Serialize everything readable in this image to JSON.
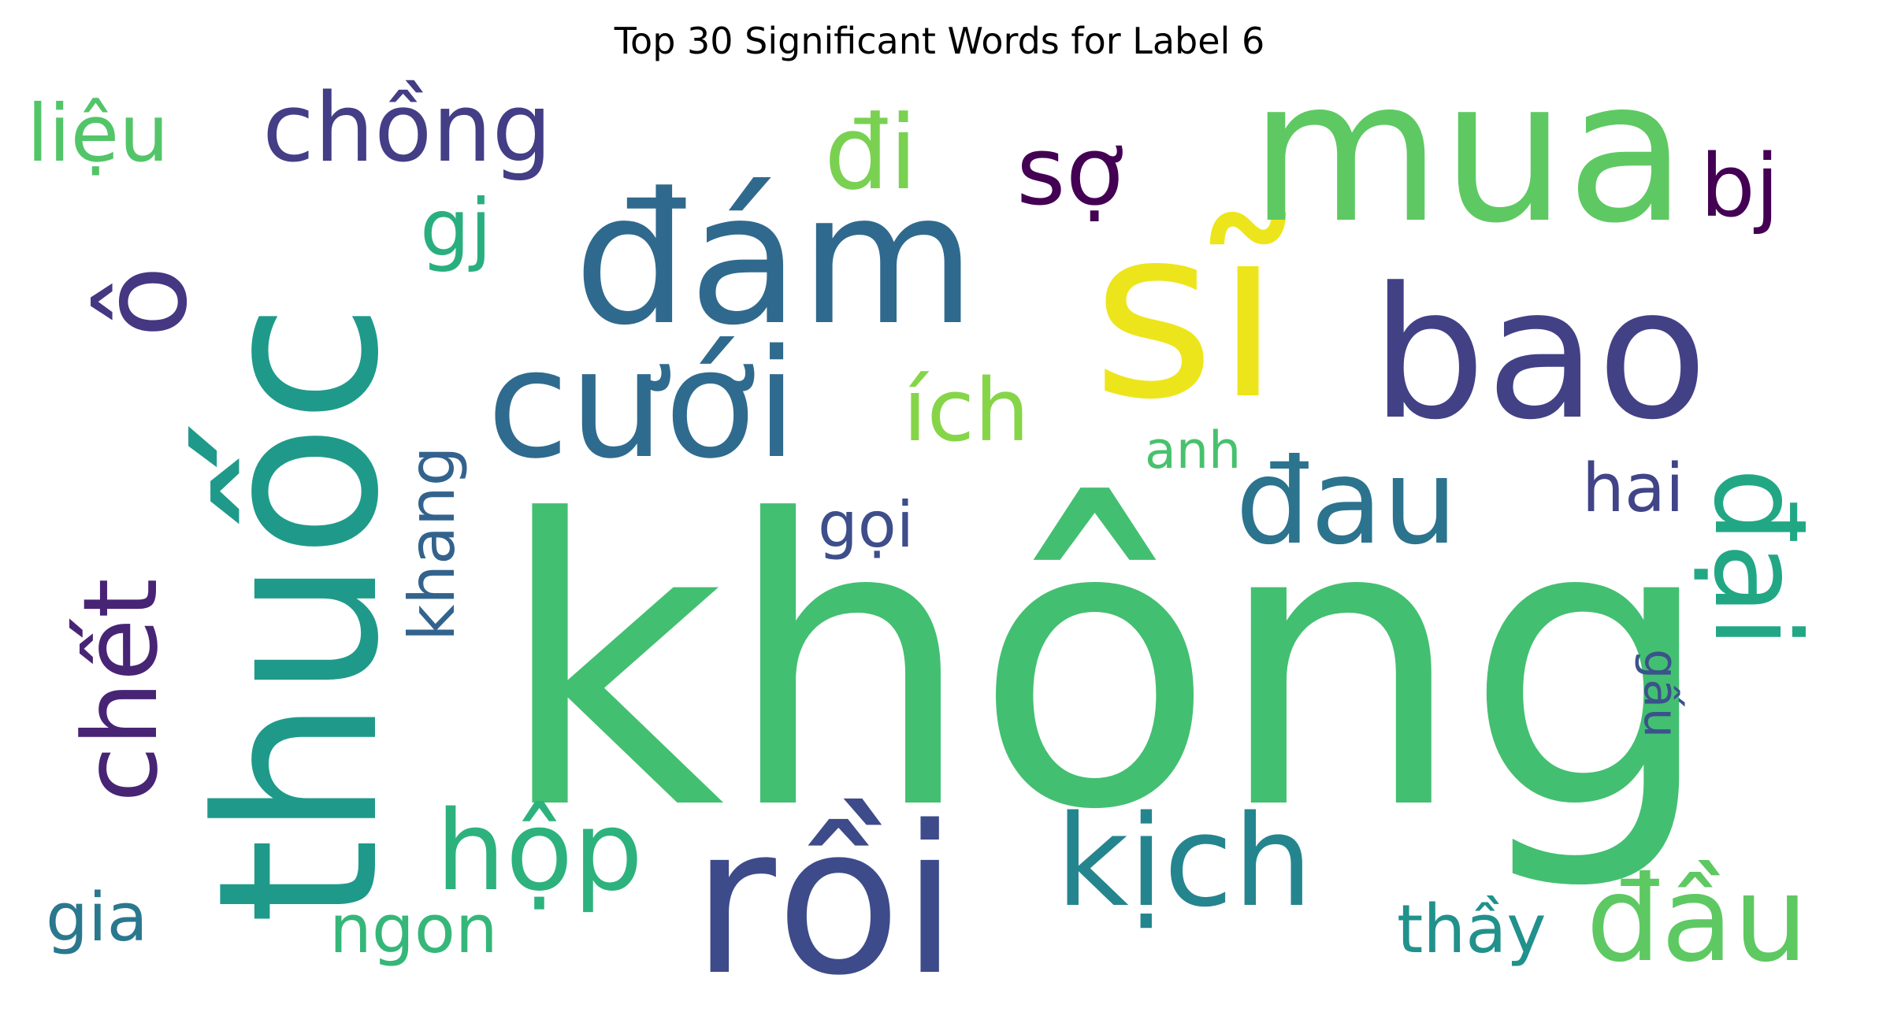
{
  "title": "Top 30 Significant Words for Label 6",
  "words": [
    {
      "text": "không",
      "color": "#43bf71"
    },
    {
      "text": "thuốc",
      "color": "#1f9a8a"
    },
    {
      "text": "rồi",
      "color": "#3e4b8a"
    },
    {
      "text": "sĩ",
      "color": "#ede51b"
    },
    {
      "text": "mua",
      "color": "#5ec962"
    },
    {
      "text": "đám",
      "color": "#30698e"
    },
    {
      "text": "bao",
      "color": "#424186"
    },
    {
      "text": "cưới",
      "color": "#2f6b8e"
    },
    {
      "text": "chết",
      "color": "#482475"
    },
    {
      "text": "ô",
      "color": "#453781"
    },
    {
      "text": "kịch",
      "color": "#25858e"
    },
    {
      "text": "đại",
      "color": "#22a785"
    },
    {
      "text": "đau",
      "color": "#2c738e"
    },
    {
      "text": "đầu",
      "color": "#5ec962"
    },
    {
      "text": "hộp",
      "color": "#2db27d"
    },
    {
      "text": "chồng",
      "color": "#433e85"
    },
    {
      "text": "đi",
      "color": "#7ad151"
    },
    {
      "text": "sợ",
      "color": "#440154"
    },
    {
      "text": "ích",
      "color": "#86d549"
    },
    {
      "text": "liệu",
      "color": "#52c569"
    },
    {
      "text": "bj",
      "color": "#440154"
    },
    {
      "text": "gj",
      "color": "#29af7f"
    },
    {
      "text": "khang",
      "color": "#33638d"
    },
    {
      "text": "hai",
      "color": "#414487"
    },
    {
      "text": "gọi",
      "color": "#3d4e8a"
    },
    {
      "text": "gấu",
      "color": "#3b528b"
    },
    {
      "text": "anh",
      "color": "#48c16e"
    },
    {
      "text": "thầy",
      "color": "#21918c"
    },
    {
      "text": "ngon",
      "color": "#35b779"
    },
    {
      "text": "gia",
      "color": "#2a788e"
    }
  ]
}
